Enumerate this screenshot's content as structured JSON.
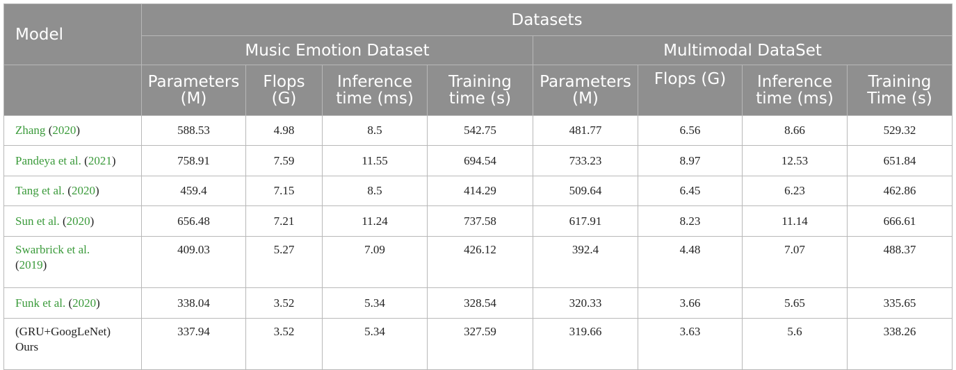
{
  "header": {
    "model": "Model",
    "datasets": "Datasets",
    "groups": [
      "Music Emotion Dataset",
      "Multimodal DataSet"
    ],
    "columns": [
      [
        "Parameters",
        "(M)"
      ],
      [
        "Flops",
        "(G)"
      ],
      [
        "Inference",
        "time (ms)"
      ],
      [
        "Training",
        "time (s)"
      ],
      [
        "Parameters",
        "(M)"
      ],
      [
        "Flops (G)",
        ""
      ],
      [
        "Inference",
        "time (ms)"
      ],
      [
        "Training",
        "Time (s)"
      ]
    ]
  },
  "rows": [
    {
      "author": "Zhang",
      "pre": " (",
      "year": "2020",
      "post": ")",
      "author2": "",
      "values": [
        "588.53",
        "4.98",
        "8.5",
        "542.75",
        "481.77",
        "6.56",
        "8.66",
        "529.32"
      ]
    },
    {
      "author": "Pandeya et al.",
      "pre": " (",
      "year": "2021",
      "post": ")",
      "author2": "",
      "values": [
        "758.91",
        "7.59",
        "11.55",
        "694.54",
        "733.23",
        "8.97",
        "12.53",
        "651.84"
      ]
    },
    {
      "author": "Tang et al.",
      "pre": " (",
      "year": "2020",
      "post": ")",
      "author2": "",
      "values": [
        "459.4",
        "7.15",
        "8.5",
        "414.29",
        "509.64",
        "6.45",
        "6.23",
        "462.86"
      ]
    },
    {
      "author": "Sun et al.",
      "pre": " (",
      "year": "2020",
      "post": ")",
      "author2": "",
      "values": [
        "656.48",
        "7.21",
        "11.24",
        "737.58",
        "617.91",
        "8.23",
        "11.14",
        "666.61"
      ]
    },
    {
      "author": "Swarbrick et al.",
      "pre": "(",
      "year": "2019",
      "post": ")",
      "author2": "",
      "values": [
        "409.03",
        "5.27",
        "7.09",
        "426.12",
        "392.4",
        "4.48",
        "7.07",
        "488.37"
      ]
    },
    {
      "author": "Funk et al.",
      "pre": " (",
      "year": "2020",
      "post": ")",
      "author2": "",
      "values": [
        "338.04",
        "3.52",
        "5.34",
        "328.54",
        "320.33",
        "3.66",
        "5.65",
        "335.65"
      ]
    },
    {
      "author": "(GRU+GoogLeNet)",
      "pre": "",
      "year": "",
      "post": "",
      "author2": "Ours",
      "values": [
        "337.94",
        "3.52",
        "5.34",
        "327.59",
        "319.66",
        "3.63",
        "5.6",
        "338.26"
      ]
    }
  ]
}
